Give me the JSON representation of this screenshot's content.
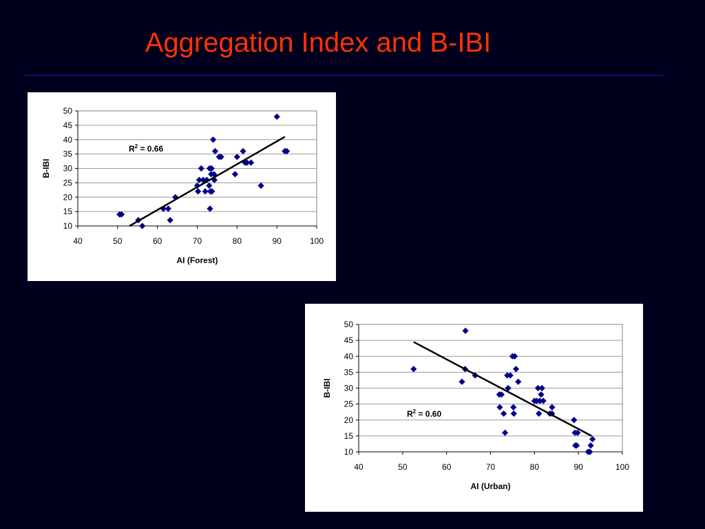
{
  "slide": {
    "title": "Aggregation Index and B-IBI",
    "colors": {
      "background": "#00001e",
      "title": "#ff3300",
      "rule": "#1a1aa8",
      "marker": "#00008b"
    }
  },
  "chart_data": [
    {
      "type": "scatter",
      "xlabel": "AI (Forest)",
      "ylabel": "B-IBI",
      "xlim": [
        40,
        100
      ],
      "ylim": [
        10,
        50
      ],
      "xticks": [
        40,
        50,
        60,
        70,
        80,
        90,
        100
      ],
      "yticks": [
        10,
        15,
        20,
        25,
        30,
        35,
        40,
        45,
        50
      ],
      "grid": "horizontal",
      "trendline": {
        "type": "linear",
        "x": [
          53,
          92
        ],
        "y": [
          10,
          41
        ]
      },
      "annotation": {
        "base": "R",
        "sup": "2",
        "text": " = 0.66"
      },
      "points": [
        [
          50.5,
          14
        ],
        [
          51,
          14
        ],
        [
          55.2,
          12
        ],
        [
          56.2,
          10
        ],
        [
          61.5,
          16
        ],
        [
          62.7,
          16
        ],
        [
          63.2,
          12
        ],
        [
          64.5,
          20
        ],
        [
          70,
          24
        ],
        [
          70.2,
          22
        ],
        [
          70.5,
          26
        ],
        [
          71,
          30
        ],
        [
          71.5,
          26
        ],
        [
          72,
          22
        ],
        [
          72.4,
          26
        ],
        [
          73,
          24
        ],
        [
          73.1,
          30
        ],
        [
          73.2,
          16
        ],
        [
          73.3,
          22
        ],
        [
          73.5,
          28
        ],
        [
          73.6,
          30
        ],
        [
          73.7,
          22
        ],
        [
          74.2,
          28
        ],
        [
          74.3,
          26
        ],
        [
          74,
          40
        ],
        [
          74.5,
          36
        ],
        [
          75.5,
          34
        ],
        [
          76,
          34
        ],
        [
          79.5,
          28
        ],
        [
          80,
          34
        ],
        [
          81.5,
          36
        ],
        [
          82,
          32
        ],
        [
          82.5,
          32
        ],
        [
          83.5,
          32
        ],
        [
          86,
          24
        ],
        [
          90,
          48
        ],
        [
          92,
          36
        ],
        [
          92.5,
          36
        ]
      ]
    },
    {
      "type": "scatter",
      "xlabel": "AI (Urban)",
      "ylabel": "B-IBI",
      "xlim": [
        40,
        100
      ],
      "ylim": [
        10,
        50
      ],
      "xticks": [
        40,
        50,
        60,
        70,
        80,
        90,
        100
      ],
      "yticks": [
        10,
        15,
        20,
        25,
        30,
        35,
        40,
        45,
        50
      ],
      "grid": "horizontal",
      "trendline": {
        "type": "linear",
        "x": [
          52.5,
          93
        ],
        "y": [
          44.5,
          15
        ]
      },
      "annotation": {
        "base": "R",
        "sup": "2",
        "text": " = 0.60"
      },
      "points": [
        [
          52.5,
          36
        ],
        [
          63.5,
          32
        ],
        [
          64.2,
          36
        ],
        [
          64.3,
          48
        ],
        [
          66.5,
          34
        ],
        [
          72,
          28
        ],
        [
          72.1,
          24
        ],
        [
          72.5,
          28
        ],
        [
          73,
          22
        ],
        [
          73.3,
          16
        ],
        [
          73.8,
          34
        ],
        [
          74,
          30
        ],
        [
          74.5,
          34
        ],
        [
          75,
          40
        ],
        [
          75.2,
          24
        ],
        [
          75.3,
          22
        ],
        [
          75.5,
          40
        ],
        [
          75.8,
          36
        ],
        [
          76.3,
          32
        ],
        [
          80,
          26
        ],
        [
          80.5,
          26
        ],
        [
          80.8,
          30
        ],
        [
          81,
          22
        ],
        [
          81.2,
          26
        ],
        [
          81.5,
          28
        ],
        [
          81.7,
          30
        ],
        [
          82,
          26
        ],
        [
          83.5,
          22
        ],
        [
          84,
          24
        ],
        [
          84,
          22
        ],
        [
          89,
          20
        ],
        [
          89.2,
          16
        ],
        [
          89.3,
          12
        ],
        [
          89.6,
          12
        ],
        [
          89.8,
          16
        ],
        [
          92.2,
          10
        ],
        [
          92.6,
          10
        ],
        [
          92.8,
          12
        ],
        [
          93.2,
          14
        ]
      ]
    }
  ]
}
